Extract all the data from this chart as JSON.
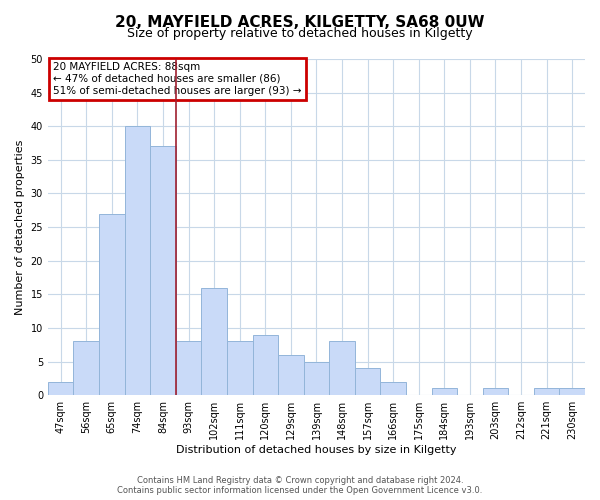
{
  "title": "20, MAYFIELD ACRES, KILGETTY, SA68 0UW",
  "subtitle": "Size of property relative to detached houses in Kilgetty",
  "xlabel": "Distribution of detached houses by size in Kilgetty",
  "ylabel": "Number of detached properties",
  "categories": [
    "47sqm",
    "56sqm",
    "65sqm",
    "74sqm",
    "84sqm",
    "93sqm",
    "102sqm",
    "111sqm",
    "120sqm",
    "129sqm",
    "139sqm",
    "148sqm",
    "157sqm",
    "166sqm",
    "175sqm",
    "184sqm",
    "193sqm",
    "203sqm",
    "212sqm",
    "221sqm",
    "230sqm"
  ],
  "values": [
    2,
    8,
    27,
    40,
    37,
    8,
    16,
    8,
    9,
    6,
    5,
    8,
    4,
    2,
    0,
    1,
    0,
    1,
    0,
    1,
    1
  ],
  "bar_color": "#c9daf8",
  "bar_edge_color": "#93b5d9",
  "vline_after_index": 4,
  "vline_color": "#a02030",
  "ylim": [
    0,
    50
  ],
  "yticks": [
    0,
    5,
    10,
    15,
    20,
    25,
    30,
    35,
    40,
    45,
    50
  ],
  "annotation_title": "20 MAYFIELD ACRES: 88sqm",
  "annotation_line1": "← 47% of detached houses are smaller (86)",
  "annotation_line2": "51% of semi-detached houses are larger (93) →",
  "annotation_box_facecolor": "#ffffff",
  "annotation_box_edgecolor": "#cc0000",
  "footer_line1": "Contains HM Land Registry data © Crown copyright and database right 2024.",
  "footer_line2": "Contains public sector information licensed under the Open Government Licence v3.0.",
  "background_color": "#ffffff",
  "grid_color": "#c8d8e8",
  "title_fontsize": 11,
  "subtitle_fontsize": 9,
  "axis_label_fontsize": 8,
  "tick_fontsize": 7,
  "footer_fontsize": 6
}
